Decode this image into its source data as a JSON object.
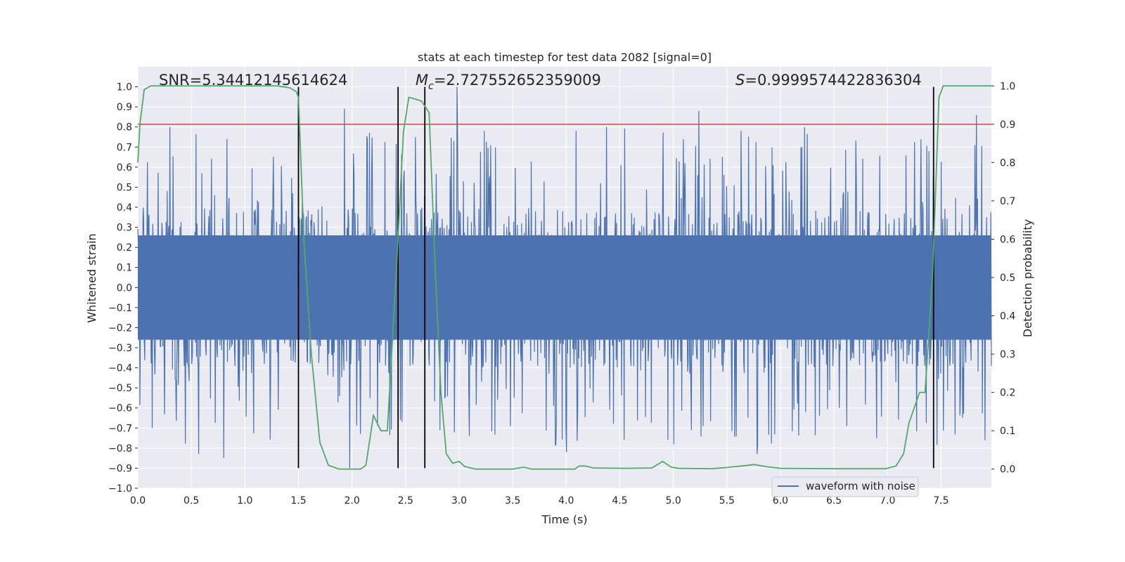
{
  "chart_data": {
    "type": "line",
    "title": "stats at each timestep for test data 2082 [signal=0]",
    "xlabel": "Time (s)",
    "ylabel": "Whitened strain",
    "y2label": "Detection probability",
    "xlim": [
      0.0,
      7.97
    ],
    "ylim": [
      -1.0,
      1.1
    ],
    "y2lim": [
      -0.05,
      1.05
    ],
    "x_ticks": [
      "0.0",
      "0.5",
      "1.0",
      "1.5",
      "2.0",
      "2.5",
      "3.0",
      "3.5",
      "4.0",
      "4.5",
      "5.0",
      "5.5",
      "6.0",
      "6.5",
      "7.0",
      "7.5"
    ],
    "y_ticks": [
      "-1.0",
      "-0.9",
      "-0.8",
      "-0.7",
      "-0.6",
      "-0.5",
      "-0.4",
      "-0.3",
      "-0.2",
      "-0.1",
      "0.0",
      "0.1",
      "0.2",
      "0.3",
      "0.4",
      "0.5",
      "0.6",
      "0.7",
      "0.8",
      "0.9",
      "1.0"
    ],
    "y2_ticks": [
      "0.0",
      "0.1",
      "0.2",
      "0.3",
      "0.4",
      "0.5",
      "0.6",
      "0.7",
      "0.8",
      "0.9",
      "1.0"
    ],
    "threshold": {
      "value": 0.9,
      "axis": "y2",
      "color": "#c44e52"
    },
    "vlines": [
      1.5,
      2.43,
      2.68,
      7.43
    ],
    "vline_y_range": [
      -0.9,
      1.0
    ],
    "annotations": {
      "snr": "SNR=5.34412145614624",
      "mc_symbol": "M",
      "mc_sub": "c",
      "mc_value": "=2.727552652359009",
      "s_symbol": "S",
      "s_value": "=0.9999574422836304"
    },
    "legend": {
      "label": "waveform with noise",
      "location": "lower right",
      "color": "#4c72b0"
    },
    "series": [
      {
        "name": "waveform with noise",
        "axis": "y1",
        "color": "#4c72b0",
        "description": "dense whitened strain noise sampled across 0 to 8 s, core amplitude roughly +/-0.4 with spikes to about +/-0.9",
        "core_amplitude": 0.4,
        "spike_max": 0.9,
        "samples": 1600,
        "peaks": [
          {
            "x": 0.3,
            "y": 0.8
          },
          {
            "x": 0.57,
            "y": -0.83
          },
          {
            "x": 0.8,
            "y": -0.85
          },
          {
            "x": 1.93,
            "y": 0.89
          },
          {
            "x": 1.98,
            "y": -0.9
          },
          {
            "x": 2.98,
            "y": 1.0
          },
          {
            "x": 3.9,
            "y": -0.78
          },
          {
            "x": 4.0,
            "y": -0.82
          },
          {
            "x": 5.24,
            "y": 0.88
          },
          {
            "x": 5.78,
            "y": -0.83
          },
          {
            "x": 6.9,
            "y": -0.75
          },
          {
            "x": 7.83,
            "y": 0.86
          }
        ]
      },
      {
        "name": "detection probability",
        "axis": "y2",
        "color": "#55a868",
        "x": [
          0.0,
          0.02,
          0.06,
          0.12,
          0.3,
          0.6,
          0.9,
          1.1,
          1.3,
          1.42,
          1.48,
          1.5,
          1.55,
          1.62,
          1.7,
          1.78,
          1.88,
          1.98,
          2.08,
          2.13,
          2.2,
          2.27,
          2.33,
          2.42,
          2.48,
          2.53,
          2.6,
          2.65,
          2.72,
          2.78,
          2.83,
          2.88,
          2.94,
          3.0,
          3.05,
          3.15,
          3.5,
          3.6,
          3.68,
          4.08,
          4.12,
          4.18,
          4.25,
          4.55,
          4.8,
          4.9,
          4.98,
          5.05,
          5.35,
          5.5,
          5.7,
          5.75,
          5.88,
          6.0,
          6.5,
          6.85,
          6.98,
          7.08,
          7.15,
          7.2,
          7.3,
          7.35,
          7.42,
          7.48,
          7.52,
          7.6,
          7.97
        ],
        "y": [
          0.8,
          0.9,
          0.99,
          1.0,
          1.0,
          1.0,
          1.0,
          1.0,
          1.0,
          0.995,
          0.985,
          0.97,
          0.6,
          0.3,
          0.07,
          0.01,
          0.0,
          0.0,
          0.0,
          0.01,
          0.14,
          0.1,
          0.1,
          0.55,
          0.88,
          0.97,
          0.965,
          0.96,
          0.93,
          0.5,
          0.2,
          0.04,
          0.015,
          0.02,
          0.007,
          0.0,
          0.0,
          0.005,
          0.0,
          0.0,
          0.008,
          0.008,
          0.003,
          0.002,
          0.003,
          0.02,
          0.005,
          0.002,
          0.001,
          0.004,
          0.01,
          0.012,
          0.006,
          0.002,
          0.001,
          0.001,
          0.001,
          0.008,
          0.04,
          0.12,
          0.2,
          0.2,
          0.5,
          0.97,
          1.0,
          1.0,
          1.0
        ]
      }
    ]
  }
}
